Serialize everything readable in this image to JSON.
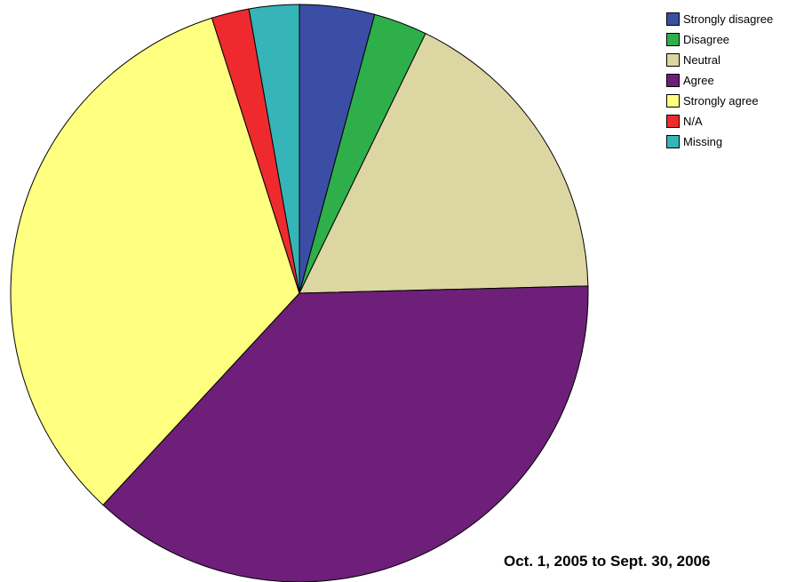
{
  "chart_data": {
    "type": "pie",
    "start_angle": "12 o'clock",
    "direction": "clockwise",
    "slices": [
      {
        "label": "Strongly disagree",
        "value": 4.2,
        "color": "#3b4ea6"
      },
      {
        "label": "Disagree",
        "value": 3.0,
        "color": "#2eaf4a"
      },
      {
        "label": "Neutral",
        "value": 17.4,
        "color": "#dcd7a2"
      },
      {
        "label": "Agree",
        "value": 37.3,
        "color": "#6e1f7a"
      },
      {
        "label": "Strongly agree",
        "value": 33.2,
        "color": "#ffff80"
      },
      {
        "label": "N/A",
        "value": 2.1,
        "color": "#ee2a2e"
      },
      {
        "label": "Missing",
        "value": 2.8,
        "color": "#35b5b8"
      }
    ],
    "legend_position": "top-right",
    "caption": "Oct. 1, 2005 to Sept. 30, 2006"
  }
}
